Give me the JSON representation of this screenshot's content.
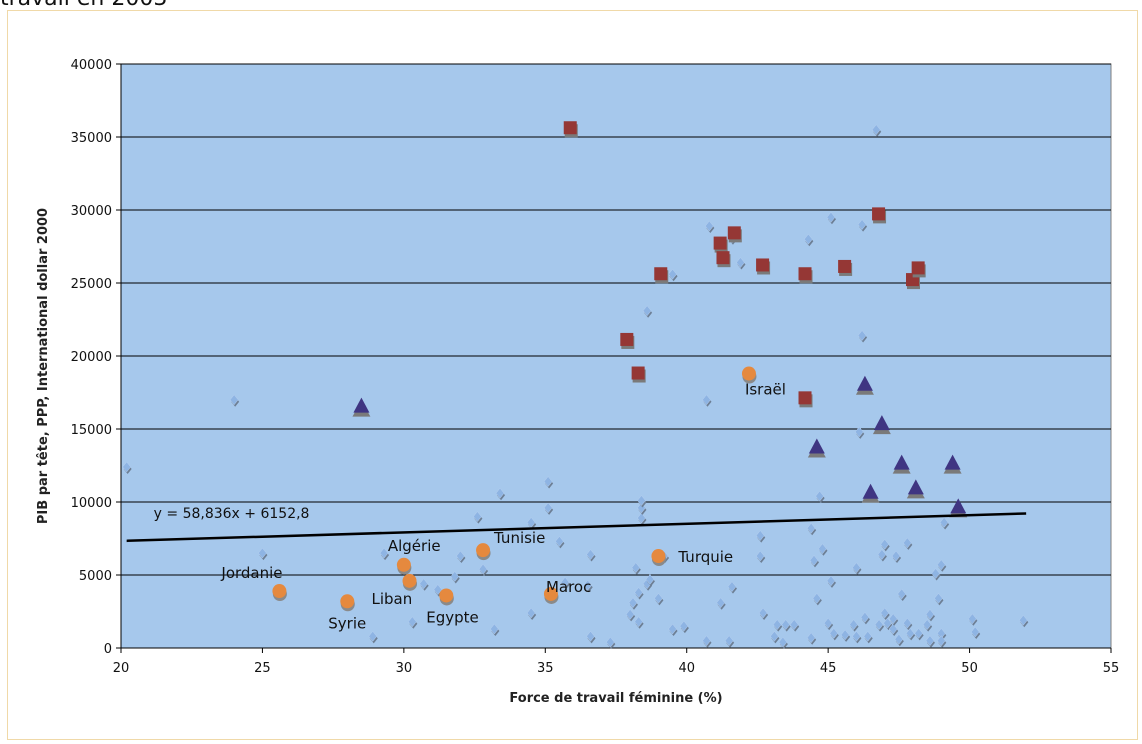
{
  "page": {
    "title_fragment": "travail en 2003"
  },
  "chart_data": {
    "type": "scatter",
    "xlabel": "Force de travail féminine (%)",
    "ylabel": "PIB par tête, PPP, International dollar 2000",
    "xlim": [
      20,
      55
    ],
    "ylim": [
      0,
      40000
    ],
    "x_ticks": [
      "20",
      "25",
      "30",
      "35",
      "40",
      "45",
      "50",
      "55"
    ],
    "y_ticks": [
      "0",
      "5000",
      "10000",
      "15000",
      "20000",
      "25000",
      "30000",
      "35000",
      "40000"
    ],
    "grid": "horizontal",
    "plot_background": "#a6c8ec",
    "trendline": {
      "equation": "y = 58,836x + 6152,8",
      "slope": 58.836,
      "intercept": 6152.8,
      "x_range": [
        20.2,
        52
      ],
      "color": "#000000"
    },
    "series": [
      {
        "marker": "diamond",
        "color": "#8eb4e3",
        "points": [
          [
            20.2,
            12400
          ],
          [
            24,
            17000
          ],
          [
            25,
            6500
          ],
          [
            28.9,
            800
          ],
          [
            29.3,
            6500
          ],
          [
            30.3,
            1800
          ],
          [
            30.7,
            4400
          ],
          [
            31.2,
            4000
          ],
          [
            31.8,
            4900
          ],
          [
            32.0,
            6300
          ],
          [
            32.6,
            9000
          ],
          [
            32.8,
            5400
          ],
          [
            33.2,
            1300
          ],
          [
            33.4,
            10600
          ],
          [
            34.5,
            8600
          ],
          [
            34.5,
            2400
          ],
          [
            35.1,
            11400
          ],
          [
            35.1,
            9600
          ],
          [
            35.5,
            7300
          ],
          [
            35.7,
            4500
          ],
          [
            36.5,
            4300
          ],
          [
            36.6,
            6400
          ],
          [
            36.6,
            800
          ],
          [
            37.3,
            400
          ],
          [
            38.0,
            2300
          ],
          [
            38.1,
            3100
          ],
          [
            38.2,
            5500
          ],
          [
            38.3,
            1800
          ],
          [
            38.3,
            3800
          ],
          [
            38.4,
            8900
          ],
          [
            38.4,
            9600
          ],
          [
            38.4,
            10100
          ],
          [
            38.6,
            4400
          ],
          [
            38.6,
            23100
          ],
          [
            38.7,
            4700
          ],
          [
            39.0,
            3400
          ],
          [
            39.2,
            6300
          ],
          [
            39.5,
            25600
          ],
          [
            39.5,
            1300
          ],
          [
            39.9,
            1500
          ],
          [
            40.7,
            17000
          ],
          [
            40.7,
            500
          ],
          [
            40.8,
            28900
          ],
          [
            41.2,
            3100
          ],
          [
            41.5,
            500
          ],
          [
            41.6,
            4200
          ],
          [
            41.6,
            28100
          ],
          [
            41.9,
            26400
          ],
          [
            42.6,
            6300
          ],
          [
            42.6,
            7700
          ],
          [
            42.7,
            2400
          ],
          [
            43.1,
            800
          ],
          [
            43.2,
            1600
          ],
          [
            43.4,
            400
          ],
          [
            43.5,
            1600
          ],
          [
            43.8,
            1600
          ],
          [
            44.3,
            28000
          ],
          [
            44.4,
            8200
          ],
          [
            44.4,
            700
          ],
          [
            44.5,
            6000
          ],
          [
            44.6,
            3400
          ],
          [
            44.7,
            10400
          ],
          [
            44.8,
            6800
          ],
          [
            45.0,
            1700
          ],
          [
            45.1,
            4600
          ],
          [
            45.2,
            1000
          ],
          [
            45.1,
            29500
          ],
          [
            45.6,
            900
          ],
          [
            45.9,
            1600
          ],
          [
            46.0,
            800
          ],
          [
            46.0,
            5500
          ],
          [
            46.1,
            14800
          ],
          [
            46.2,
            21400
          ],
          [
            46.2,
            29000
          ],
          [
            46.3,
            2100
          ],
          [
            46.4,
            800
          ],
          [
            46.7,
            35500
          ],
          [
            46.8,
            1600
          ],
          [
            46.9,
            6400
          ],
          [
            47.0,
            2400
          ],
          [
            47.0,
            7100
          ],
          [
            47.1,
            1700
          ],
          [
            47.3,
            1300
          ],
          [
            47.3,
            2000
          ],
          [
            47.4,
            6300
          ],
          [
            47.5,
            600
          ],
          [
            47.6,
            3700
          ],
          [
            47.8,
            7200
          ],
          [
            47.8,
            1700
          ],
          [
            47.9,
            1000
          ],
          [
            48.2,
            1000
          ],
          [
            48.5,
            1600
          ],
          [
            48.6,
            2300
          ],
          [
            48.6,
            500
          ],
          [
            48.8,
            5100
          ],
          [
            48.9,
            3400
          ],
          [
            49.0,
            5700
          ],
          [
            49.0,
            1000
          ],
          [
            49.0,
            500
          ],
          [
            49.1,
            8600
          ],
          [
            50.1,
            2000
          ],
          [
            50.2,
            1100
          ],
          [
            51.9,
            1900
          ]
        ]
      },
      {
        "marker": "square",
        "color": "#953735",
        "points": [
          [
            35.9,
            35600
          ],
          [
            37.9,
            21100
          ],
          [
            38.3,
            18800
          ],
          [
            39.1,
            25600
          ],
          [
            41.2,
            27700
          ],
          [
            41.3,
            26700
          ],
          [
            41.7,
            28400
          ],
          [
            42.7,
            26200
          ],
          [
            44.2,
            25600
          ],
          [
            44.2,
            17100
          ],
          [
            45.6,
            26100
          ],
          [
            46.8,
            29700
          ],
          [
            48.0,
            25200
          ],
          [
            48.2,
            26000
          ]
        ]
      },
      {
        "marker": "triangle",
        "color": "#3f3582",
        "points": [
          [
            28.5,
            16600
          ],
          [
            44.6,
            13800
          ],
          [
            46.3,
            18100
          ],
          [
            46.5,
            10700
          ],
          [
            46.9,
            15400
          ],
          [
            47.6,
            12700
          ],
          [
            48.1,
            11000
          ],
          [
            49.4,
            12700
          ],
          [
            49.6,
            9700
          ]
        ]
      },
      {
        "marker": "circle",
        "color": "#e5893e",
        "points": [
          [
            25.6,
            3900
          ],
          [
            28,
            3200
          ],
          [
            30,
            5700
          ],
          [
            30.2,
            4600
          ],
          [
            31.5,
            3600
          ],
          [
            32.8,
            6700
          ],
          [
            35.2,
            3700
          ],
          [
            39,
            6300
          ],
          [
            42.2,
            18800
          ]
        ]
      }
    ],
    "annotations": [
      {
        "label": "Jordanie",
        "x": 25.6,
        "y": 3900
      },
      {
        "label": "Syrie",
        "x": 28,
        "y": 3200
      },
      {
        "label": "Algérie",
        "x": 30,
        "y": 5700
      },
      {
        "label": "Liban",
        "x": 30.2,
        "y": 4600
      },
      {
        "label": "Egypte",
        "x": 31.5,
        "y": 3600
      },
      {
        "label": "Tunisie",
        "x": 32.8,
        "y": 6700
      },
      {
        "label": "Maroc",
        "x": 35.2,
        "y": 3700
      },
      {
        "label": "Turquie",
        "x": 39,
        "y": 6300
      },
      {
        "label": "Israël",
        "x": 42.2,
        "y": 18800
      }
    ]
  }
}
